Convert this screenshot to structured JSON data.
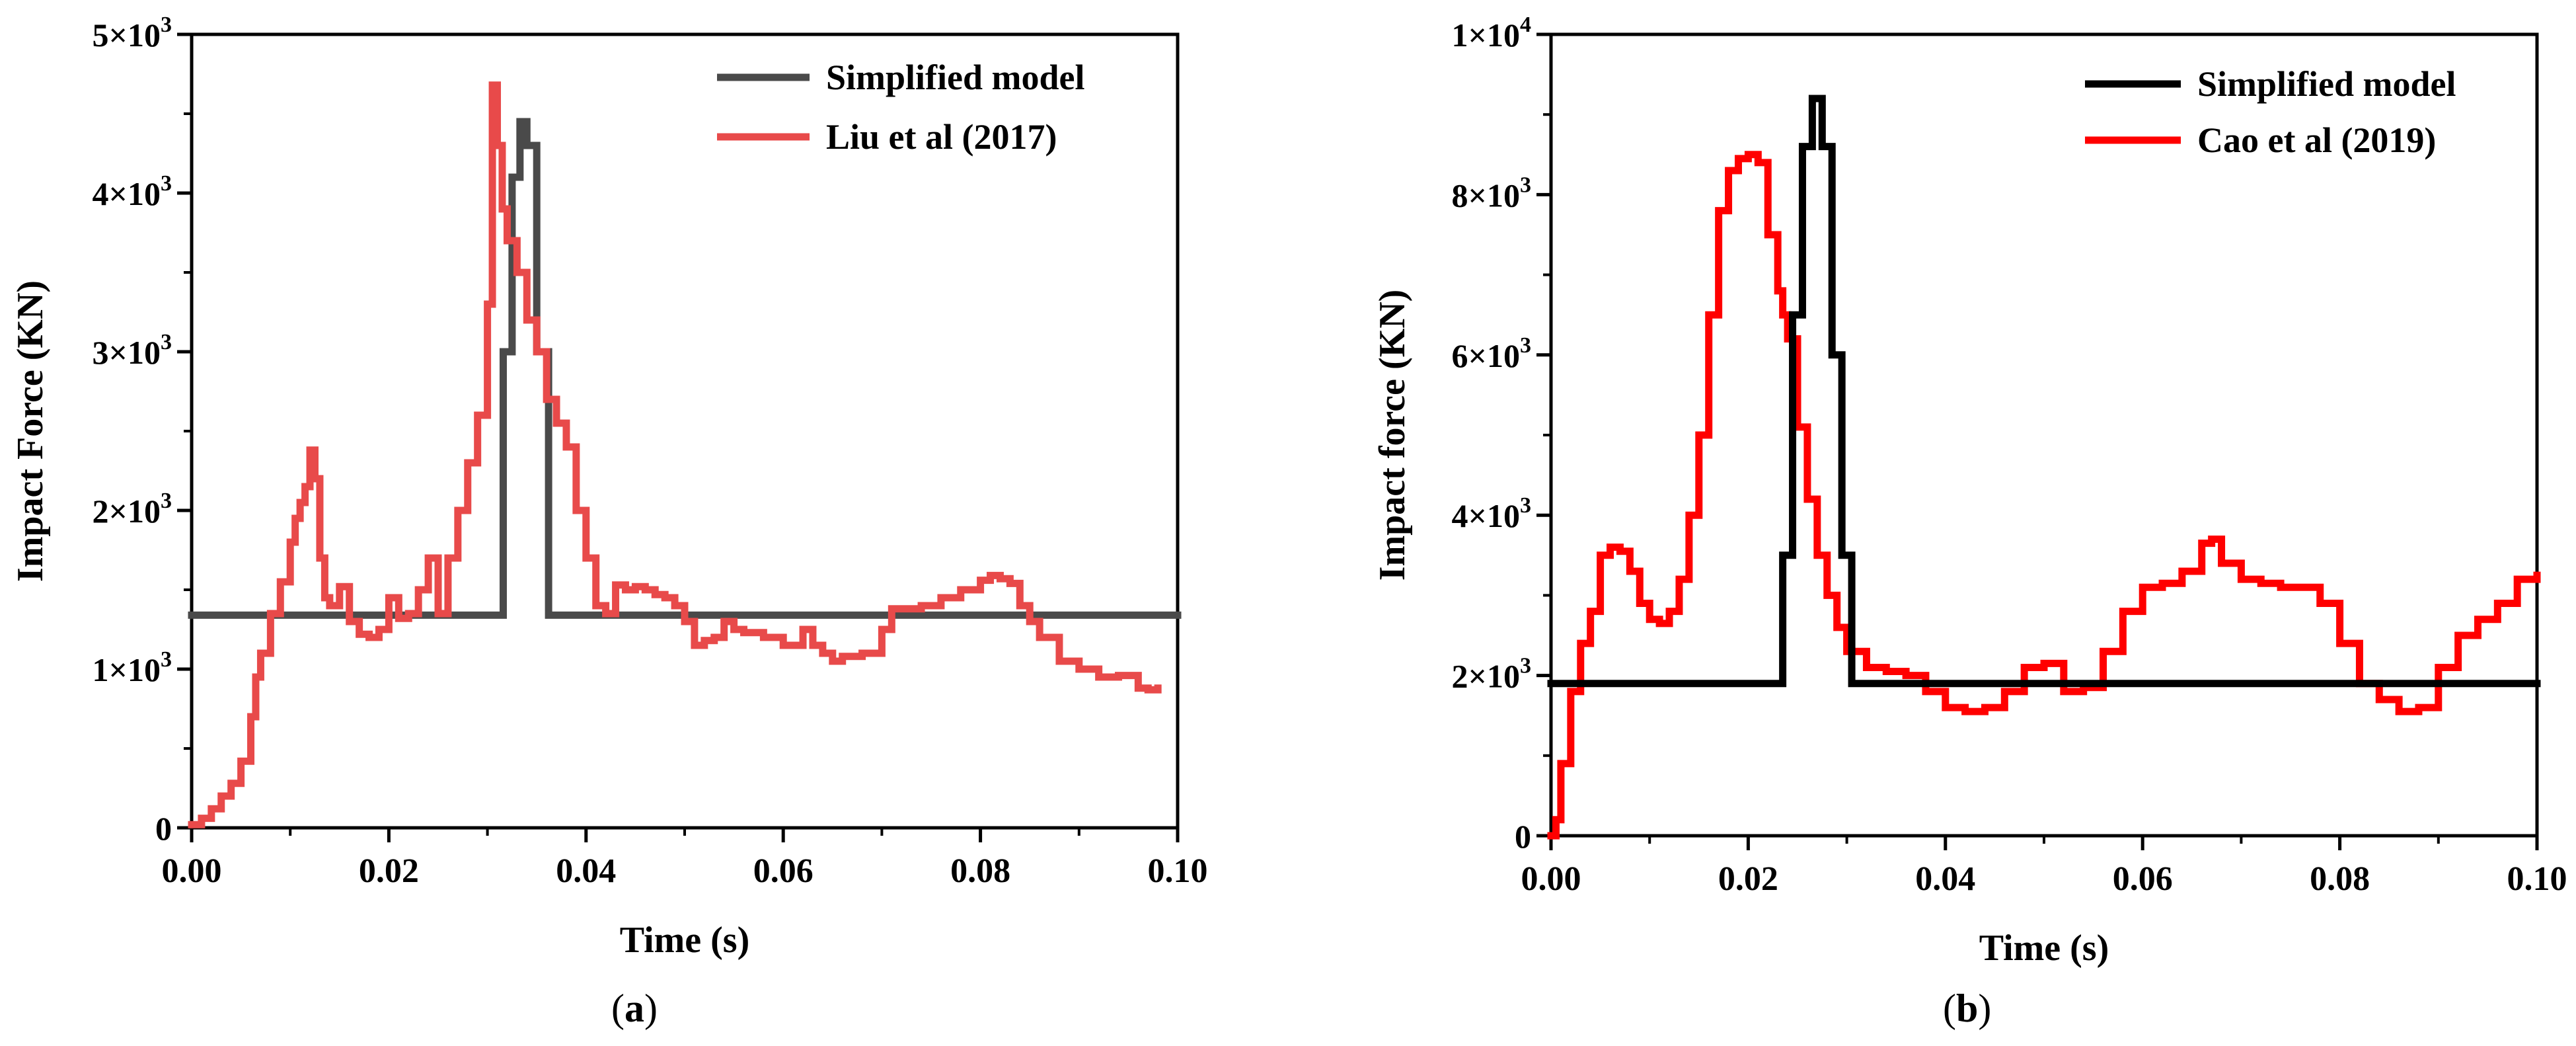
{
  "chart_data": [
    {
      "type": "line",
      "panel_label": "a",
      "xlabel": "Time (s)",
      "ylabel": "Impact Force (KN)",
      "xlim": [
        0,
        0.1
      ],
      "ylim": [
        0,
        5000
      ],
      "xticks": [
        0,
        0.02,
        0.04,
        0.06,
        0.08,
        0.1
      ],
      "xtick_labels": [
        "0.00",
        "0.02",
        "0.04",
        "0.06",
        "0.08",
        "0.10"
      ],
      "yticks": [
        {
          "value": 0,
          "mantissa": "0",
          "exponent": ""
        },
        {
          "value": 1000,
          "mantissa": "1×10",
          "exponent": "3"
        },
        {
          "value": 2000,
          "mantissa": "2×10",
          "exponent": "3"
        },
        {
          "value": 3000,
          "mantissa": "3×10",
          "exponent": "3"
        },
        {
          "value": 4000,
          "mantissa": "4×10",
          "exponent": "3"
        },
        {
          "value": 5000,
          "mantissa": "5×10",
          "exponent": "3"
        }
      ],
      "legend_position": "top-right",
      "series": [
        {
          "name": "Simplified model",
          "color": "#4a4a4a",
          "x": [
            0,
            0.0308,
            0.0316,
            0.0325,
            0.0333,
            0.034,
            0.035,
            0.0362,
            0.037,
            0.1
          ],
          "y": [
            1340,
            1340,
            3000,
            4100,
            4450,
            4300,
            3000,
            1340,
            1340,
            1340
          ]
        },
        {
          "name": "Liu et al (2017)",
          "color": "#e84a4a",
          "x": [
            0,
            0.001,
            0.002,
            0.003,
            0.004,
            0.005,
            0.006,
            0.0065,
            0.007,
            0.008,
            0.009,
            0.01,
            0.0105,
            0.011,
            0.0115,
            0.012,
            0.0125,
            0.013,
            0.0135,
            0.014,
            0.015,
            0.016,
            0.017,
            0.018,
            0.019,
            0.02,
            0.021,
            0.022,
            0.023,
            0.024,
            0.025,
            0.026,
            0.027,
            0.028,
            0.029,
            0.03,
            0.0305,
            0.031,
            0.0315,
            0.032,
            0.033,
            0.034,
            0.035,
            0.036,
            0.037,
            0.038,
            0.039,
            0.04,
            0.041,
            0.042,
            0.043,
            0.044,
            0.045,
            0.046,
            0.047,
            0.048,
            0.049,
            0.05,
            0.051,
            0.052,
            0.053,
            0.054,
            0.055,
            0.056,
            0.058,
            0.06,
            0.062,
            0.063,
            0.064,
            0.065,
            0.066,
            0.068,
            0.07,
            0.071,
            0.072,
            0.074,
            0.076,
            0.078,
            0.08,
            0.081,
            0.082,
            0.083,
            0.084,
            0.085,
            0.086,
            0.088,
            0.09,
            0.092,
            0.094,
            0.096,
            0.097,
            0.098
          ],
          "y": [
            20,
            60,
            120,
            200,
            280,
            420,
            700,
            950,
            1100,
            1350,
            1550,
            1800,
            1950,
            2050,
            2150,
            2380,
            2200,
            1700,
            1450,
            1400,
            1520,
            1300,
            1220,
            1200,
            1250,
            1450,
            1320,
            1350,
            1500,
            1700,
            1350,
            1700,
            2000,
            2300,
            2600,
            3300,
            4680,
            4300,
            3900,
            3700,
            3500,
            3200,
            3000,
            2700,
            2550,
            2400,
            2000,
            1700,
            1400,
            1350,
            1530,
            1500,
            1520,
            1500,
            1470,
            1450,
            1400,
            1300,
            1150,
            1180,
            1200,
            1300,
            1250,
            1230,
            1200,
            1150,
            1250,
            1150,
            1100,
            1050,
            1080,
            1100,
            1250,
            1380,
            1380,
            1400,
            1450,
            1500,
            1560,
            1590,
            1570,
            1540,
            1400,
            1300,
            1200,
            1050,
            1000,
            950,
            960,
            880,
            870,
            880
          ]
        }
      ]
    },
    {
      "type": "line",
      "panel_label": "b",
      "xlabel": "Time (s)",
      "ylabel": "Impact force (KN)",
      "xlim": [
        0,
        0.1
      ],
      "ylim": [
        0,
        10000
      ],
      "xticks": [
        0,
        0.02,
        0.04,
        0.06,
        0.08,
        0.1
      ],
      "xtick_labels": [
        "0.00",
        "0.02",
        "0.04",
        "0.06",
        "0.08",
        "0.10"
      ],
      "yticks": [
        {
          "value": 0,
          "mantissa": "0",
          "exponent": ""
        },
        {
          "value": 2000,
          "mantissa": "2×10",
          "exponent": "3"
        },
        {
          "value": 4000,
          "mantissa": "4×10",
          "exponent": "3"
        },
        {
          "value": 6000,
          "mantissa": "6×10",
          "exponent": "3"
        },
        {
          "value": 8000,
          "mantissa": "8×10",
          "exponent": "3"
        },
        {
          "value": 10000,
          "mantissa": "1×10",
          "exponent": "4"
        }
      ],
      "legend_position": "top-right",
      "series": [
        {
          "name": "Simplified model",
          "color": "#000000",
          "x": [
            0,
            0.0225,
            0.0235,
            0.0245,
            0.0255,
            0.0265,
            0.0275,
            0.0285,
            0.0295,
            0.0305,
            0.1
          ],
          "y": [
            1900,
            1900,
            3500,
            6500,
            8600,
            9200,
            8600,
            6000,
            3500,
            1900,
            1900
          ]
        },
        {
          "name": "Cao et al (2019)",
          "color": "#ff0000",
          "x": [
            0,
            0.0005,
            0.001,
            0.002,
            0.003,
            0.004,
            0.005,
            0.006,
            0.007,
            0.008,
            0.009,
            0.01,
            0.011,
            0.012,
            0.013,
            0.014,
            0.015,
            0.016,
            0.017,
            0.018,
            0.019,
            0.02,
            0.021,
            0.022,
            0.023,
            0.0235,
            0.024,
            0.025,
            0.026,
            0.027,
            0.028,
            0.029,
            0.03,
            0.032,
            0.034,
            0.036,
            0.038,
            0.04,
            0.042,
            0.044,
            0.046,
            0.048,
            0.05,
            0.052,
            0.054,
            0.056,
            0.058,
            0.06,
            0.062,
            0.064,
            0.066,
            0.067,
            0.068,
            0.07,
            0.072,
            0.074,
            0.076,
            0.078,
            0.08,
            0.082,
            0.084,
            0.086,
            0.088,
            0.09,
            0.092,
            0.094,
            0.096,
            0.098,
            0.1
          ],
          "y": [
            0,
            200,
            900,
            1800,
            2400,
            2800,
            3500,
            3600,
            3550,
            3300,
            2900,
            2700,
            2650,
            2800,
            3200,
            4000,
            5000,
            6500,
            7800,
            8300,
            8450,
            8500,
            8400,
            7500,
            6800,
            6500,
            6200,
            5100,
            4200,
            3500,
            3000,
            2600,
            2300,
            2100,
            2050,
            2000,
            1800,
            1600,
            1550,
            1600,
            1800,
            2100,
            2150,
            1800,
            1850,
            2300,
            2800,
            3100,
            3150,
            3300,
            3650,
            3700,
            3400,
            3200,
            3150,
            3100,
            3100,
            2900,
            2400,
            1900,
            1700,
            1550,
            1600,
            2100,
            2500,
            2700,
            2900,
            3200,
            3250
          ]
        }
      ]
    }
  ]
}
